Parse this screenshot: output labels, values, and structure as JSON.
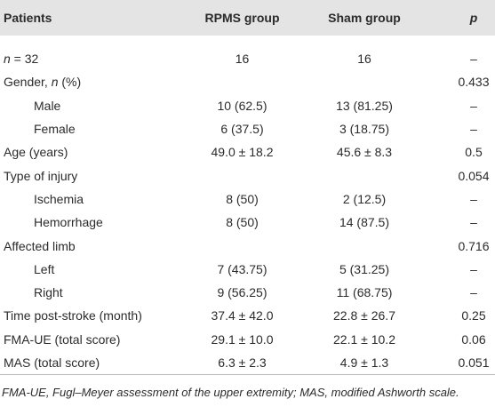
{
  "table": {
    "header": [
      "Patients",
      "RPMS group",
      "Sham group",
      "p"
    ],
    "rows": [
      {
        "label": [
          {
            "text": "n",
            "italic": true
          },
          {
            "text": " = 32"
          }
        ],
        "cells": [
          "16",
          "16",
          "–"
        ]
      },
      {
        "label": [
          {
            "text": "Gender, "
          },
          {
            "text": "n",
            "italic": true
          },
          {
            "text": " (%)"
          }
        ],
        "cells": [
          null,
          null,
          "0.433"
        ]
      },
      {
        "label": [
          {
            "text": "Male"
          }
        ],
        "sub": true,
        "cells": [
          "10 (62.5)",
          "13 (81.25)",
          "–"
        ]
      },
      {
        "label": [
          {
            "text": "Female"
          }
        ],
        "sub": true,
        "cells": [
          "6 (37.5)",
          "3 (18.75)",
          "–"
        ]
      },
      {
        "label": [
          {
            "text": "Age (years)"
          }
        ],
        "cells": [
          "49.0 ± 18.2",
          "45.6 ± 8.3",
          "0.5"
        ]
      },
      {
        "label": [
          {
            "text": "Type of injury"
          }
        ],
        "cells": [
          null,
          null,
          "0.054"
        ]
      },
      {
        "label": [
          {
            "text": "Ischemia"
          }
        ],
        "sub": true,
        "cells": [
          "8 (50)",
          "2 (12.5)",
          "–"
        ]
      },
      {
        "label": [
          {
            "text": "Hemorrhage"
          }
        ],
        "sub": true,
        "cells": [
          "8 (50)",
          "14 (87.5)",
          "–"
        ]
      },
      {
        "label": [
          {
            "text": "Affected limb"
          }
        ],
        "cells": [
          null,
          null,
          "0.716"
        ]
      },
      {
        "label": [
          {
            "text": "Left"
          }
        ],
        "sub": true,
        "cells": [
          "7 (43.75)",
          "5 (31.25)",
          "–"
        ]
      },
      {
        "label": [
          {
            "text": "Right"
          }
        ],
        "sub": true,
        "cells": [
          "9 (56.25)",
          "11 (68.75)",
          "–"
        ]
      },
      {
        "label": [
          {
            "text": "Time post-stroke (month)"
          }
        ],
        "cells": [
          "37.4 ± 42.0",
          "22.8 ± 26.7",
          "0.25"
        ]
      },
      {
        "label": [
          {
            "text": "FMA-UE (total score)"
          }
        ],
        "cells": [
          "29.1 ± 10.0",
          "22.1 ± 10.2",
          "0.06"
        ]
      },
      {
        "label": [
          {
            "text": "MAS (total score)"
          }
        ],
        "cells": [
          "6.3 ± 2.3",
          "4.9 ± 1.3",
          "0.051"
        ]
      }
    ],
    "footnote": "FMA-UE, Fugl–Meyer assessment of the upper extremity; MAS, modified Ashworth scale."
  }
}
